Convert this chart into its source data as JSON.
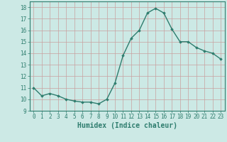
{
  "x": [
    0,
    1,
    2,
    3,
    4,
    5,
    6,
    7,
    8,
    9,
    10,
    11,
    12,
    13,
    14,
    15,
    16,
    17,
    18,
    19,
    20,
    21,
    22,
    23
  ],
  "y": [
    11.0,
    10.3,
    10.5,
    10.3,
    10.0,
    9.85,
    9.75,
    9.75,
    9.6,
    10.0,
    11.4,
    13.8,
    15.3,
    16.0,
    17.5,
    17.9,
    17.5,
    16.1,
    15.0,
    15.0,
    14.5,
    14.2,
    14.0,
    13.5
  ],
  "line_color": "#2e7d6e",
  "marker": "D",
  "marker_size": 1.8,
  "linewidth": 1.0,
  "xlabel": "Humidex (Indice chaleur)",
  "xlim": [
    -0.5,
    23.5
  ],
  "ylim": [
    9.0,
    18.5
  ],
  "yticks": [
    9,
    10,
    11,
    12,
    13,
    14,
    15,
    16,
    17,
    18
  ],
  "xticks": [
    0,
    1,
    2,
    3,
    4,
    5,
    6,
    7,
    8,
    9,
    10,
    11,
    12,
    13,
    14,
    15,
    16,
    17,
    18,
    19,
    20,
    21,
    22,
    23
  ],
  "bg_color": "#cce9e5",
  "grid_color": "#c8a0a0",
  "tick_fontsize": 5.5,
  "xlabel_fontsize": 7,
  "label_color": "#2e7d6e"
}
